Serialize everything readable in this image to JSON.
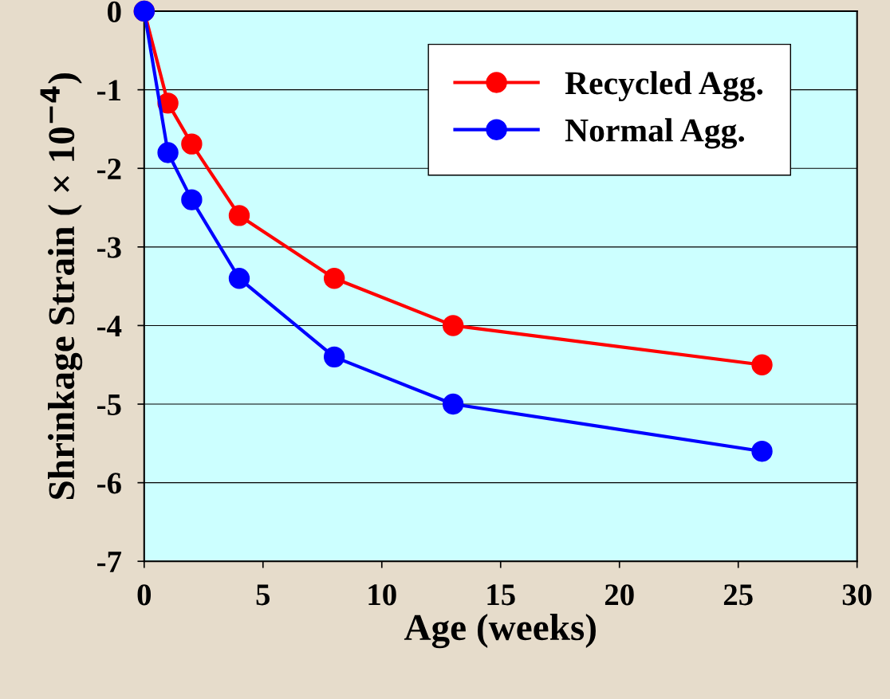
{
  "chart_data": {
    "type": "line",
    "xlabel": "Age (weeks)",
    "ylabel": "Shrinkage Strain ( × 10$^{−4}$)",
    "x": [
      0,
      1,
      2,
      4,
      8,
      13,
      26
    ],
    "series": [
      {
        "name": "Recycled Agg.",
        "color": "#ff0000",
        "values": [
          0,
          -1.17,
          -1.69,
          -2.6,
          -3.4,
          -4.0,
          -4.5
        ]
      },
      {
        "name": "Normal Agg.",
        "color": "#0000ff",
        "values": [
          0,
          -1.8,
          -2.4,
          -3.4,
          -4.4,
          -5.0,
          -5.6
        ]
      }
    ],
    "xlim": [
      0,
      30
    ],
    "xticks": [
      0,
      5,
      10,
      15,
      20,
      25,
      30
    ],
    "ylim": [
      -7,
      0
    ],
    "yticks": [
      -7,
      -6,
      -5,
      -4,
      -3,
      -2,
      -1,
      0
    ],
    "grid": "y",
    "legend": "top right",
    "marker": "circle",
    "line_style": "solid"
  }
}
